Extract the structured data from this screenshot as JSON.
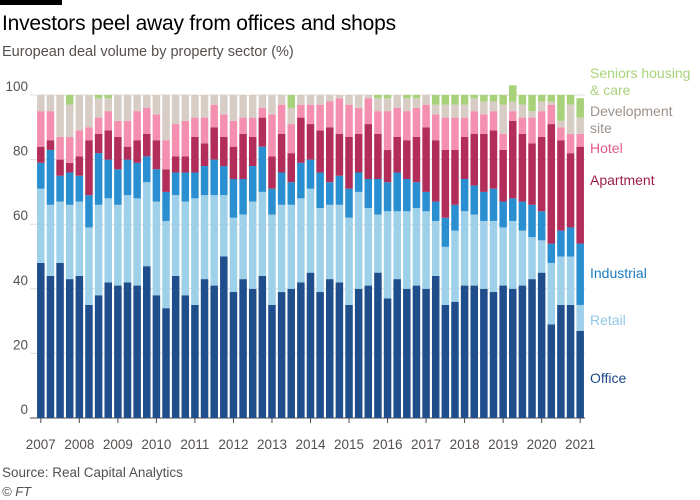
{
  "header": {
    "title": "Investors peel away from offices and shops",
    "subtitle": "European deal volume by property sector (%)"
  },
  "footer": {
    "source": "Source: Real Capital Analytics",
    "credit": "© FT"
  },
  "chart_data": {
    "type": "bar",
    "stacked": true,
    "title": "Investors peel away from offices and shops",
    "subtitle": "European deal volume by property sector (%)",
    "xlabel": "",
    "ylabel": "",
    "ylim": [
      0,
      100
    ],
    "yticks": [
      0,
      20,
      40,
      60,
      80,
      100
    ],
    "grid": true,
    "period_labels": [
      "2007",
      "2008",
      "2009",
      "2010",
      "2011",
      "2012",
      "2013",
      "2014",
      "2015",
      "2016",
      "2017",
      "2018",
      "2019",
      "2020",
      "2021"
    ],
    "bars_per_period": 4,
    "categories": [
      "2007 Q1",
      "2007 Q2",
      "2007 Q3",
      "2007 Q4",
      "2008 Q1",
      "2008 Q2",
      "2008 Q3",
      "2008 Q4",
      "2009 Q1",
      "2009 Q2",
      "2009 Q3",
      "2009 Q4",
      "2010 Q1",
      "2010 Q2",
      "2010 Q3",
      "2010 Q4",
      "2011 Q1",
      "2011 Q2",
      "2011 Q3",
      "2011 Q4",
      "2012 Q1",
      "2012 Q2",
      "2012 Q3",
      "2012 Q4",
      "2013 Q1",
      "2013 Q2",
      "2013 Q3",
      "2013 Q4",
      "2014 Q1",
      "2014 Q2",
      "2014 Q3",
      "2014 Q4",
      "2015 Q1",
      "2015 Q2",
      "2015 Q3",
      "2015 Q4",
      "2016 Q1",
      "2016 Q2",
      "2016 Q3",
      "2016 Q4",
      "2017 Q1",
      "2017 Q2",
      "2017 Q3",
      "2017 Q4",
      "2018 Q1",
      "2018 Q2",
      "2018 Q3",
      "2018 Q4",
      "2019 Q1",
      "2019 Q2",
      "2019 Q3",
      "2019 Q4",
      "2020 Q1",
      "2020 Q2",
      "2020 Q3",
      "2020 Q4",
      "2021 Q1"
    ],
    "series": [
      {
        "name": "Office",
        "color": "#1f4e8c",
        "values": [
          48,
          44,
          48,
          43,
          44,
          35,
          38,
          42,
          41,
          42,
          41,
          47,
          38,
          34,
          44,
          38,
          35,
          43,
          41,
          50,
          39,
          43,
          40,
          44,
          35,
          39,
          40,
          42,
          45,
          39,
          43,
          42,
          35,
          40,
          41,
          45,
          37,
          43,
          40,
          41,
          40,
          44,
          35,
          36,
          41,
          41,
          40,
          39,
          41,
          40,
          41,
          43,
          45,
          29,
          35,
          35,
          27
        ]
      },
      {
        "name": "Retail",
        "color": "#9fd0ea",
        "values": [
          23,
          22,
          19,
          23,
          23,
          24,
          28,
          26,
          25,
          27,
          27,
          26,
          29,
          27,
          25,
          29,
          33,
          26,
          28,
          19,
          23,
          20,
          27,
          26,
          28,
          27,
          26,
          26,
          26,
          26,
          23,
          24,
          27,
          30,
          24,
          18,
          27,
          21,
          24,
          24,
          24,
          17,
          18,
          22,
          23,
          22,
          21,
          22,
          18,
          21,
          17,
          13,
          10,
          19,
          15,
          15,
          8
        ]
      },
      {
        "name": "Industrial",
        "color": "#2a8fd1",
        "values": [
          8,
          17,
          8,
          10,
          8,
          10,
          16,
          12,
          11,
          11,
          11,
          8,
          10,
          9,
          7,
          9,
          8,
          9,
          11,
          9,
          12,
          11,
          11,
          14,
          8,
          10,
          7,
          11,
          9,
          11,
          7,
          9,
          9,
          6,
          9,
          11,
          9,
          12,
          10,
          8,
          6,
          6,
          9,
          8,
          10,
          9,
          9,
          10,
          8,
          7,
          9,
          10,
          9,
          6,
          8,
          9,
          19
        ]
      },
      {
        "name": "Apartment",
        "color": "#b32d5a",
        "values": [
          5,
          3,
          5,
          3,
          6,
          17,
          6,
          9,
          10,
          4,
          7,
          7,
          9,
          7,
          5,
          5,
          11,
          7,
          10,
          9,
          10,
          14,
          9,
          9,
          10,
          12,
          9,
          14,
          11,
          13,
          17,
          13,
          16,
          12,
          17,
          14,
          10,
          11,
          12,
          14,
          20,
          19,
          21,
          17,
          13,
          16,
          18,
          18,
          16,
          24,
          21,
          19,
          23,
          37,
          28,
          23,
          30
        ]
      },
      {
        "name": "Hotel",
        "color": "#f48fb0",
        "values": [
          11,
          9,
          7,
          8,
          8,
          4,
          5,
          6,
          5,
          8,
          9,
          8,
          8,
          9,
          10,
          11,
          6,
          8,
          7,
          7,
          8,
          5,
          6,
          3,
          13,
          9,
          9,
          4,
          6,
          8,
          8,
          11,
          10,
          8,
          8,
          7,
          12,
          9,
          9,
          9,
          7,
          8,
          10,
          10,
          6,
          7,
          6,
          6,
          5,
          3,
          5,
          8,
          8,
          6,
          4,
          6,
          4
        ]
      },
      {
        "name": "Development site",
        "color": "#d7cdc4",
        "values": [
          5,
          5,
          13,
          10,
          11,
          10,
          6,
          4,
          8,
          8,
          5,
          4,
          6,
          14,
          9,
          8,
          7,
          7,
          3,
          6,
          8,
          7,
          7,
          4,
          6,
          3,
          5,
          3,
          3,
          3,
          2,
          1,
          3,
          4,
          1,
          4,
          4,
          4,
          4,
          3,
          3,
          3,
          4,
          4,
          4,
          4,
          4,
          3,
          9,
          3,
          4,
          2,
          3,
          1,
          2,
          9,
          5
        ]
      },
      {
        "name": "Seniors housing & care",
        "color": "#a8d27a",
        "values": [
          0,
          0,
          0,
          3,
          0,
          0,
          1,
          1,
          0,
          0,
          0,
          0,
          0,
          0,
          0,
          0,
          0,
          0,
          0,
          0,
          0,
          0,
          0,
          0,
          0,
          0,
          4,
          0,
          0,
          0,
          0,
          0,
          0,
          0,
          0,
          1,
          1,
          0,
          1,
          1,
          0,
          3,
          3,
          3,
          3,
          1,
          2,
          2,
          3,
          5,
          3,
          5,
          2,
          2,
          8,
          3,
          6
        ]
      }
    ]
  },
  "legend": {
    "labels": [
      {
        "lines": [
          "Seniors housing",
          "& care"
        ],
        "color": "#a8d27a"
      },
      {
        "lines": [
          "Development",
          "site"
        ],
        "color": "#9b918a"
      },
      {
        "lines": [
          "Hotel"
        ],
        "color": "#e05a8a"
      },
      {
        "lines": [
          "Apartment"
        ],
        "color": "#9e1f4a"
      },
      {
        "lines": [
          "Industrial"
        ],
        "color": "#1a7cc0"
      },
      {
        "lines": [
          "Retail"
        ],
        "color": "#8fc6e4"
      },
      {
        "lines": [
          "Office"
        ],
        "color": "#1c4886"
      }
    ]
  }
}
